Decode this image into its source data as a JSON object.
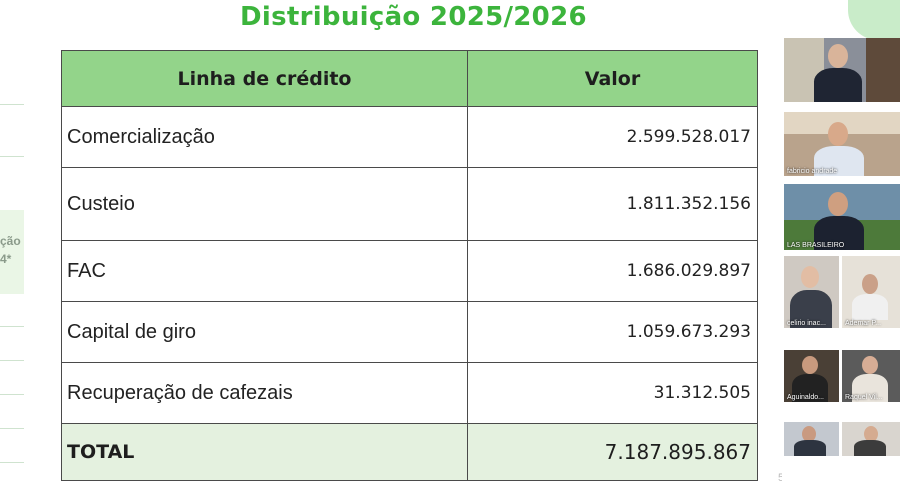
{
  "slide": {
    "title": "Distribuição 2025/2026",
    "left_fragment": {
      "line1": "ção",
      "line2": "4*"
    },
    "page_fragment": "5"
  },
  "table": {
    "headers": [
      "Linha de crédito",
      "Valor"
    ],
    "rows": [
      {
        "label": "Comercialização",
        "value": "2.599.528.017"
      },
      {
        "label": "Custeio",
        "value": "1.811.352.156"
      },
      {
        "label": "FAC",
        "value": "1.686.029.897"
      },
      {
        "label": "Capital de giro",
        "value": "1.059.673.293"
      },
      {
        "label": "Recuperação de cafezais",
        "value": "31.312.505"
      }
    ],
    "total": {
      "label": "TOTAL",
      "value": "7.187.895.867"
    }
  },
  "participants": [
    {
      "name": ""
    },
    {
      "name": "fabricio andrade"
    },
    {
      "name": "LAS BRASILEIRO"
    },
    {
      "name": "celirio inac..."
    },
    {
      "name": "Ademar P..."
    },
    {
      "name": "Aguinaldo..."
    },
    {
      "name": "Raquel Vil..."
    },
    {
      "name": ""
    },
    {
      "name": ""
    }
  ],
  "colors": {
    "title_green": "#3cb43c",
    "header_green": "#93d48a",
    "total_row": "#e4f1df"
  }
}
